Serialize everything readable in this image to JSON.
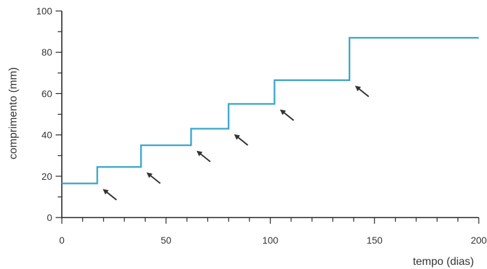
{
  "chart_data": {
    "type": "line",
    "title": "",
    "xlabel": "tempo (dias)",
    "ylabel": "comprimento (mm)",
    "xlim": [
      0,
      200
    ],
    "ylim": [
      0,
      100
    ],
    "x_ticks_labeled": [
      0,
      50,
      100,
      150,
      200
    ],
    "x_tick_labels": [
      "0",
      "50",
      "100",
      "150",
      "200"
    ],
    "x_minor_step": 10,
    "y_ticks_labeled": [
      0,
      20,
      40,
      60,
      80,
      100
    ],
    "y_tick_labels": [
      "0",
      "20",
      "40",
      "60",
      "80",
      "100"
    ],
    "y_minor_step": 10,
    "grid": false,
    "legend": "none",
    "series": [
      {
        "x": [
          0,
          17,
          17,
          38,
          38,
          62,
          62,
          80,
          80,
          102,
          102,
          138,
          138,
          200
        ],
        "y": [
          16.5,
          16.5,
          24.5,
          24.5,
          35,
          35,
          43,
          43,
          55,
          55,
          66.5,
          66.5,
          87,
          87
        ]
      }
    ],
    "annotations": {
      "type": "arrow",
      "points_at": [
        {
          "x": 17,
          "y": 16.5
        },
        {
          "x": 38,
          "y": 24.5
        },
        {
          "x": 62,
          "y": 35
        },
        {
          "x": 80,
          "y": 43
        },
        {
          "x": 102,
          "y": 55
        },
        {
          "x": 138,
          "y": 66.5
        }
      ]
    },
    "colors": {
      "series": "#3ba7c9",
      "axis": "#222222"
    }
  }
}
